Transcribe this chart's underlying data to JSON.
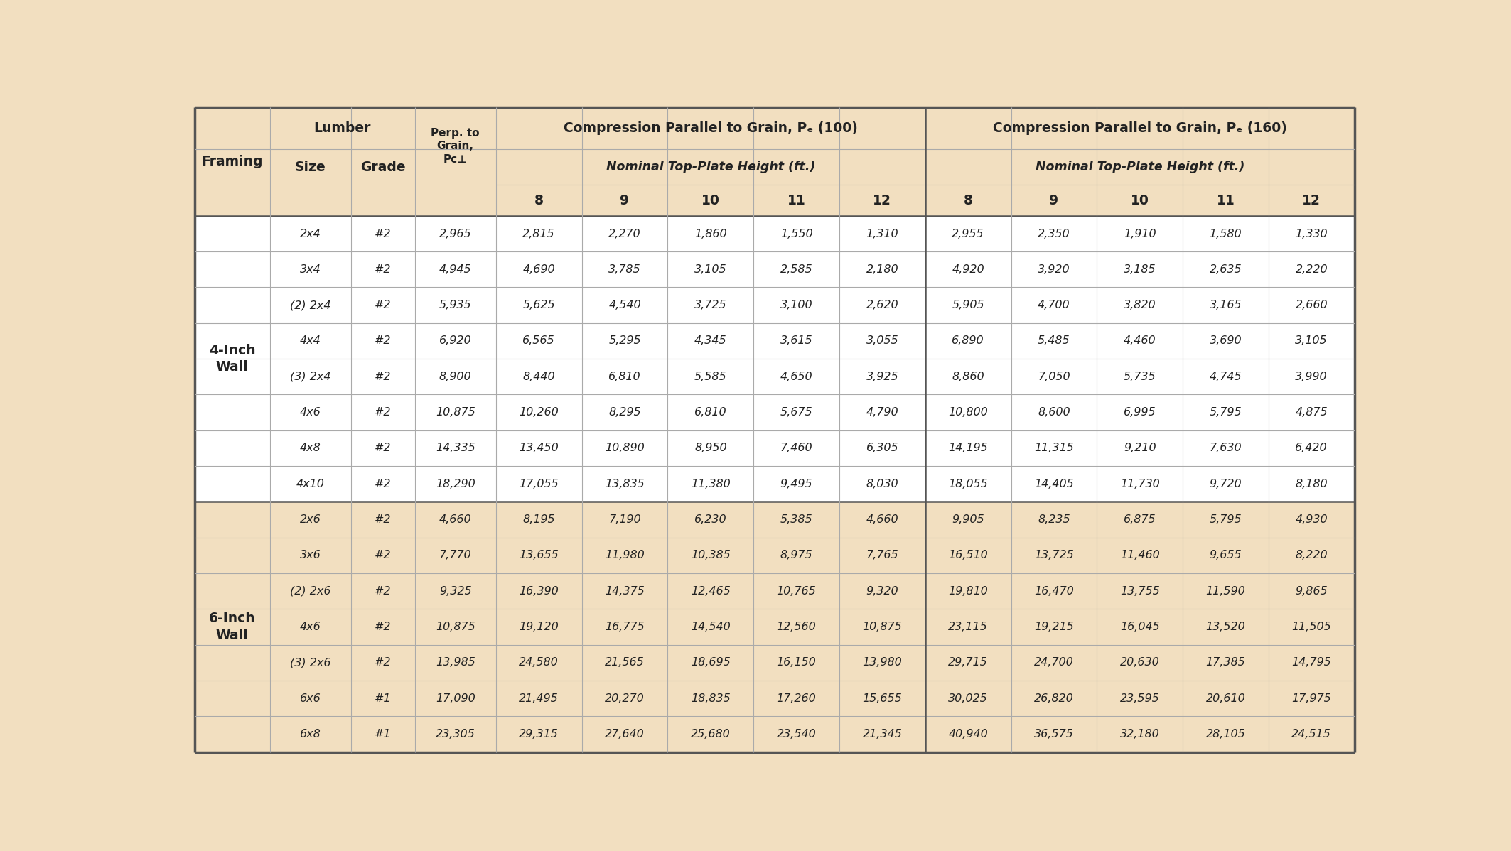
{
  "tan_bg": "#f2dfc0",
  "white_bg": "#ffffff",
  "border_thin": "#aaaaaa",
  "border_thick": "#555555",
  "rows_4inch": [
    {
      "size": "2x4",
      "grade": "#2",
      "perp": "2,965",
      "pc100": [
        "2,815",
        "2,270",
        "1,860",
        "1,550",
        "1,310"
      ],
      "pc160": [
        "2,955",
        "2,350",
        "1,910",
        "1,580",
        "1,330"
      ]
    },
    {
      "size": "3x4",
      "grade": "#2",
      "perp": "4,945",
      "pc100": [
        "4,690",
        "3,785",
        "3,105",
        "2,585",
        "2,180"
      ],
      "pc160": [
        "4,920",
        "3,920",
        "3,185",
        "2,635",
        "2,220"
      ]
    },
    {
      "size": "(2) 2x4",
      "grade": "#2",
      "perp": "5,935",
      "pc100": [
        "5,625",
        "4,540",
        "3,725",
        "3,100",
        "2,620"
      ],
      "pc160": [
        "5,905",
        "4,700",
        "3,820",
        "3,165",
        "2,660"
      ]
    },
    {
      "size": "4x4",
      "grade": "#2",
      "perp": "6,920",
      "pc100": [
        "6,565",
        "5,295",
        "4,345",
        "3,615",
        "3,055"
      ],
      "pc160": [
        "6,890",
        "5,485",
        "4,460",
        "3,690",
        "3,105"
      ]
    },
    {
      "size": "(3) 2x4",
      "grade": "#2",
      "perp": "8,900",
      "pc100": [
        "8,440",
        "6,810",
        "5,585",
        "4,650",
        "3,925"
      ],
      "pc160": [
        "8,860",
        "7,050",
        "5,735",
        "4,745",
        "3,990"
      ]
    },
    {
      "size": "4x6",
      "grade": "#2",
      "perp": "10,875",
      "pc100": [
        "10,260",
        "8,295",
        "6,810",
        "5,675",
        "4,790"
      ],
      "pc160": [
        "10,800",
        "8,600",
        "6,995",
        "5,795",
        "4,875"
      ]
    },
    {
      "size": "4x8",
      "grade": "#2",
      "perp": "14,335",
      "pc100": [
        "13,450",
        "10,890",
        "8,950",
        "7,460",
        "6,305"
      ],
      "pc160": [
        "14,195",
        "11,315",
        "9,210",
        "7,630",
        "6,420"
      ]
    },
    {
      "size": "4x10",
      "grade": "#2",
      "perp": "18,290",
      "pc100": [
        "17,055",
        "13,835",
        "11,380",
        "9,495",
        "8,030"
      ],
      "pc160": [
        "18,055",
        "14,405",
        "11,730",
        "9,720",
        "8,180"
      ]
    }
  ],
  "rows_6inch": [
    {
      "size": "2x6",
      "grade": "#2",
      "perp": "4,660",
      "pc100": [
        "8,195",
        "7,190",
        "6,230",
        "5,385",
        "4,660"
      ],
      "pc160": [
        "9,905",
        "8,235",
        "6,875",
        "5,795",
        "4,930"
      ]
    },
    {
      "size": "3x6",
      "grade": "#2",
      "perp": "7,770",
      "pc100": [
        "13,655",
        "11,980",
        "10,385",
        "8,975",
        "7,765"
      ],
      "pc160": [
        "16,510",
        "13,725",
        "11,460",
        "9,655",
        "8,220"
      ]
    },
    {
      "size": "(2) 2x6",
      "grade": "#2",
      "perp": "9,325",
      "pc100": [
        "16,390",
        "14,375",
        "12,465",
        "10,765",
        "9,320"
      ],
      "pc160": [
        "19,810",
        "16,470",
        "13,755",
        "11,590",
        "9,865"
      ]
    },
    {
      "size": "4x6",
      "grade": "#2",
      "perp": "10,875",
      "pc100": [
        "19,120",
        "16,775",
        "14,540",
        "12,560",
        "10,875"
      ],
      "pc160": [
        "23,115",
        "19,215",
        "16,045",
        "13,520",
        "11,505"
      ]
    },
    {
      "size": "(3) 2x6",
      "grade": "#2",
      "perp": "13,985",
      "pc100": [
        "24,580",
        "21,565",
        "18,695",
        "16,150",
        "13,980"
      ],
      "pc160": [
        "29,715",
        "24,700",
        "20,630",
        "17,385",
        "14,795"
      ]
    },
    {
      "size": "6x6",
      "grade": "#1",
      "perp": "17,090",
      "pc100": [
        "21,495",
        "20,270",
        "18,835",
        "17,260",
        "15,655"
      ],
      "pc160": [
        "30,025",
        "26,820",
        "23,595",
        "20,610",
        "17,975"
      ]
    },
    {
      "size": "6x8",
      "grade": "#1",
      "perp": "23,305",
      "pc100": [
        "29,315",
        "27,640",
        "25,680",
        "23,540",
        "21,345"
      ],
      "pc160": [
        "40,940",
        "36,575",
        "32,180",
        "28,105",
        "24,515"
      ]
    }
  ],
  "heights": [
    "8",
    "9",
    "10",
    "11",
    "12"
  ]
}
